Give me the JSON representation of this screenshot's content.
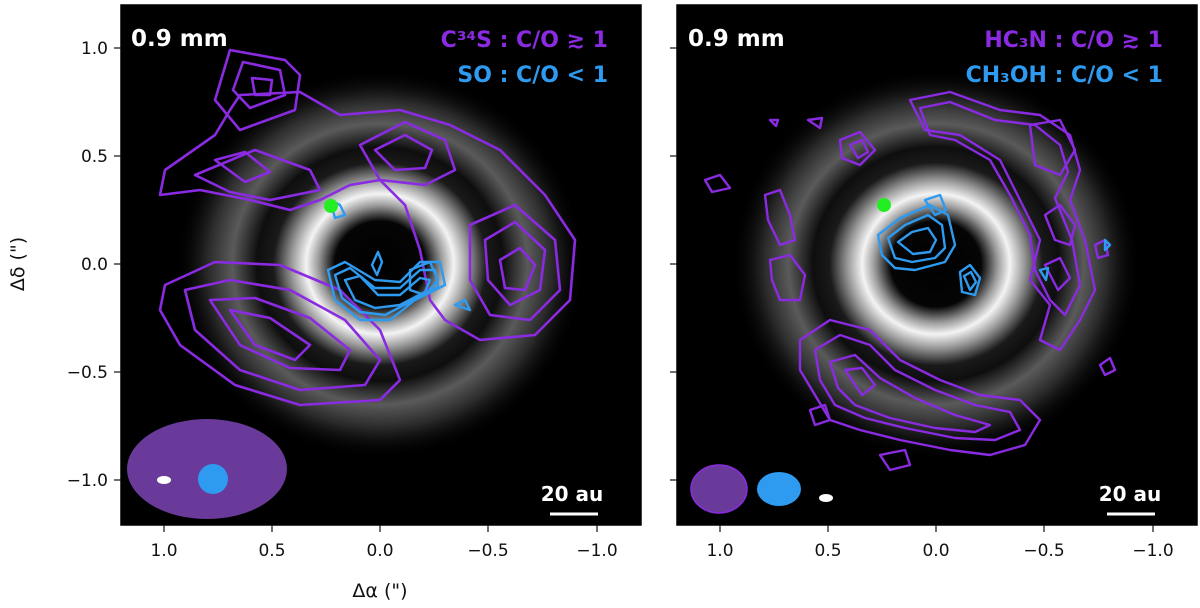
{
  "colors": {
    "purple": "#8A2BE2",
    "blue": "#2E9BF0",
    "green": "#22EE22",
    "beam_purple": "#6A3A9A",
    "background": "#000000"
  },
  "axes": {
    "xlabel": "Δα (\")",
    "ylabel": "Δδ (\")",
    "xlim": [
      1.2,
      -1.2
    ],
    "ylim": [
      -1.2,
      1.2
    ],
    "xticks": [
      "1.0",
      "0.5",
      "0.0",
      "−0.5",
      "−1.0"
    ],
    "yticks": [
      "1.0",
      "0.5",
      "0.0",
      "−0.5",
      "−1.0"
    ]
  },
  "panels": [
    {
      "wavelength": "0.9 mm",
      "line1": "C³⁴S : C/O ≳ 1",
      "line2": "SO : C/O < 1",
      "scalebar": "20 au"
    },
    {
      "wavelength": "0.9 mm",
      "line1": "HC₃N : C/O ≳ 1",
      "line2": "CH₃OH : C/O < 1",
      "scalebar": "20 au"
    }
  ]
}
